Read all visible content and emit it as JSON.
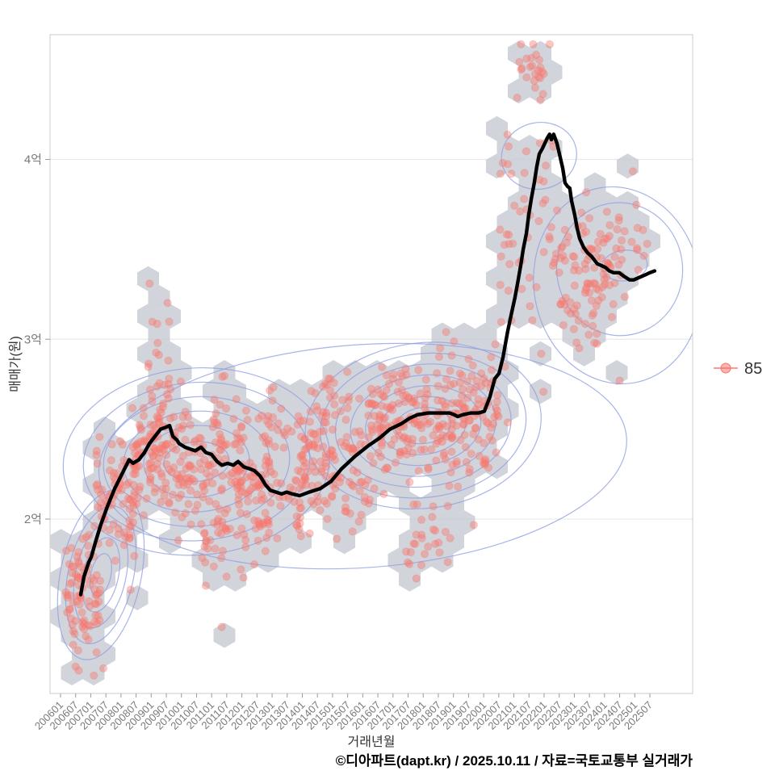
{
  "chart_data": {
    "type": "scatter",
    "overlays": [
      "hexbin",
      "density_contour",
      "trend_line"
    ],
    "title": "",
    "xlabel": "거래년월",
    "ylabel": "매매가(원)",
    "x_index_unit": "months since 2006-01",
    "x_tick_labels": [
      "200601",
      "200607",
      "200701",
      "200707",
      "200801",
      "200807",
      "200901",
      "200907",
      "201001",
      "201007",
      "201101",
      "201107",
      "201201",
      "201207",
      "201301",
      "201307",
      "201401",
      "201407",
      "201501",
      "201507",
      "201601",
      "201607",
      "201701",
      "201707",
      "201801",
      "201807",
      "201901",
      "201907",
      "202001",
      "202007",
      "202101",
      "202107",
      "202201",
      "202207",
      "202301",
      "202307",
      "202401",
      "202407",
      "202501",
      "202507"
    ],
    "y_ticks": [
      {
        "label": "2억",
        "value": 2
      },
      {
        "label": "3억",
        "value": 3
      },
      {
        "label": "4억",
        "value": 4
      }
    ],
    "ylim": [
      1.1,
      4.7
    ],
    "legend": {
      "label": "85"
    },
    "colors": {
      "point": "#F8766D",
      "hex_fill": "#C7CBD2",
      "contour": "#92A0E2",
      "trend": "#000000",
      "grid": "#E9E9E9",
      "axis_text": "#7A7A7A",
      "panel_border": "#D4D4D4",
      "tick_mark": "#9A9A9A"
    },
    "trend_line": [
      [
        8.0,
        1.58
      ],
      [
        9.3,
        1.68
      ],
      [
        11.2,
        1.76
      ],
      [
        12.2,
        1.79
      ],
      [
        13.8,
        1.87
      ],
      [
        16.0,
        1.97
      ],
      [
        18.6,
        2.07
      ],
      [
        21.5,
        2.17
      ],
      [
        24.7,
        2.26
      ],
      [
        27.2,
        2.33
      ],
      [
        28.8,
        2.31
      ],
      [
        31.1,
        2.33
      ],
      [
        33.3,
        2.37
      ],
      [
        35.3,
        2.42
      ],
      [
        37.5,
        2.46
      ],
      [
        39.7,
        2.5
      ],
      [
        41.7,
        2.51
      ],
      [
        43.3,
        2.52
      ],
      [
        44.6,
        2.46
      ],
      [
        46.2,
        2.44
      ],
      [
        47.1,
        2.42
      ],
      [
        49.4,
        2.4
      ],
      [
        51.3,
        2.39
      ],
      [
        53.5,
        2.38
      ],
      [
        55.8,
        2.4
      ],
      [
        57.7,
        2.37
      ],
      [
        59.9,
        2.36
      ],
      [
        62.2,
        2.32
      ],
      [
        64.1,
        2.3
      ],
      [
        66.4,
        2.31
      ],
      [
        68.6,
        2.3
      ],
      [
        70.5,
        2.32
      ],
      [
        72.8,
        2.29
      ],
      [
        75.0,
        2.28
      ],
      [
        76.9,
        2.27
      ],
      [
        79.2,
        2.24
      ],
      [
        81.4,
        2.19
      ],
      [
        83.3,
        2.16
      ],
      [
        85.6,
        2.15
      ],
      [
        87.8,
        2.14
      ],
      [
        89.8,
        2.15
      ],
      [
        92.0,
        2.14
      ],
      [
        94.9,
        2.13
      ],
      [
        98.7,
        2.15
      ],
      [
        103.2,
        2.17
      ],
      [
        107.4,
        2.21
      ],
      [
        111.6,
        2.28
      ],
      [
        117.0,
        2.35
      ],
      [
        122.4,
        2.41
      ],
      [
        126.6,
        2.45
      ],
      [
        130.8,
        2.5
      ],
      [
        135.3,
        2.53
      ],
      [
        138.5,
        2.56
      ],
      [
        141.7,
        2.58
      ],
      [
        145.9,
        2.59
      ],
      [
        150.0,
        2.59
      ],
      [
        154.5,
        2.59
      ],
      [
        156.4,
        2.58
      ],
      [
        157.7,
        2.57
      ],
      [
        159.6,
        2.58
      ],
      [
        162.8,
        2.59
      ],
      [
        166.0,
        2.59
      ],
      [
        168.3,
        2.6
      ],
      [
        170.5,
        2.68
      ],
      [
        172.4,
        2.78
      ],
      [
        174.1,
        2.81
      ],
      [
        175.7,
        2.9
      ],
      [
        177.5,
        3.04
      ],
      [
        179.0,
        3.14
      ],
      [
        180.4,
        3.23
      ],
      [
        181.6,
        3.32
      ],
      [
        182.7,
        3.41
      ],
      [
        183.7,
        3.5
      ],
      [
        185.0,
        3.59
      ],
      [
        185.9,
        3.69
      ],
      [
        186.9,
        3.78
      ],
      [
        188.1,
        3.87
      ],
      [
        189.1,
        3.96
      ],
      [
        190.1,
        4.03
      ],
      [
        191.3,
        4.06
      ],
      [
        192.3,
        4.09
      ],
      [
        193.3,
        4.12
      ],
      [
        194.2,
        4.14
      ],
      [
        194.9,
        4.11
      ],
      [
        195.8,
        4.14
      ],
      [
        197.1,
        4.09
      ],
      [
        198.1,
        4.03
      ],
      [
        199.4,
        3.95
      ],
      [
        200.3,
        3.87
      ],
      [
        201.3,
        3.85
      ],
      [
        202.2,
        3.84
      ],
      [
        202.9,
        3.77
      ],
      [
        204.2,
        3.69
      ],
      [
        205.1,
        3.62
      ],
      [
        206.1,
        3.56
      ],
      [
        207.7,
        3.51
      ],
      [
        209.3,
        3.48
      ],
      [
        210.9,
        3.46
      ],
      [
        213.1,
        3.42
      ],
      [
        214.7,
        3.41
      ],
      [
        216.3,
        3.4
      ],
      [
        217.9,
        3.38
      ],
      [
        219.6,
        3.37
      ],
      [
        221.8,
        3.37
      ],
      [
        223.7,
        3.35
      ],
      [
        226.0,
        3.33
      ],
      [
        227.6,
        3.33
      ],
      [
        229.2,
        3.34
      ],
      [
        230.8,
        3.35
      ],
      [
        232.4,
        3.36
      ],
      [
        234.0,
        3.37
      ],
      [
        235.9,
        3.38
      ]
    ],
    "scatter_clusters": [
      {
        "m_range": [
          2,
          16
        ],
        "v_mean": 1.6,
        "v_sd": 0.2,
        "n": 85
      },
      {
        "m_range": [
          14,
          30
        ],
        "v_mean": 2.1,
        "v_sd": 0.17,
        "n": 75
      },
      {
        "m_range": [
          28,
          46
        ],
        "v_mean": 2.34,
        "v_sd": 0.17,
        "n": 100
      },
      {
        "m_range": [
          33,
          44
        ],
        "v_mean": 2.8,
        "v_sd": 0.22,
        "n": 30
      },
      {
        "m_range": [
          46,
          72
        ],
        "v_mean": 2.27,
        "v_sd": 0.17,
        "n": 115
      },
      {
        "m_range": [
          70,
          96
        ],
        "v_mean": 2.15,
        "v_sd": 0.16,
        "n": 105
      },
      {
        "m_range": [
          56,
          68
        ],
        "v_mean": 1.87,
        "v_sd": 0.1,
        "n": 22
      },
      {
        "m_range": [
          60,
          92
        ],
        "v_mean": 2.55,
        "v_sd": 0.14,
        "n": 35
      },
      {
        "m_range": [
          94,
          124
        ],
        "v_mean": 2.3,
        "v_sd": 0.18,
        "n": 120
      },
      {
        "m_range": [
          96,
          122
        ],
        "v_mean": 2.62,
        "v_sd": 0.12,
        "n": 25
      },
      {
        "m_range": [
          122,
          150
        ],
        "v_mean": 2.54,
        "v_sd": 0.16,
        "n": 140
      },
      {
        "m_range": [
          136,
          155
        ],
        "v_mean": 1.88,
        "v_sd": 0.1,
        "n": 25
      },
      {
        "m_range": [
          150,
          174
        ],
        "v_mean": 2.58,
        "v_sd": 0.19,
        "n": 130
      },
      {
        "m_range": [
          174,
          196
        ],
        "v_mean": 3.75,
        "v_sd": 0.45,
        "n": 55
      },
      {
        "m_range": [
          181,
          192
        ],
        "v_mean": 4.45,
        "v_sd": 0.1,
        "n": 22
      },
      {
        "m_range": [
          196,
          233
        ],
        "v_mean": 3.42,
        "v_sd": 0.17,
        "n": 100
      },
      {
        "m_range": [
          199,
          214
        ],
        "v_mean": 3.12,
        "v_sd": 0.08,
        "n": 20
      }
    ],
    "scatter_singles": [
      [
        64,
        1.4
      ],
      [
        222,
        2.77
      ],
      [
        206,
        2.95
      ],
      [
        5,
        1.3
      ],
      [
        7,
        1.27
      ],
      [
        6,
        1.18
      ],
      [
        17,
        1.17
      ]
    ],
    "density_contours": [
      {
        "m": 16,
        "v": 1.69,
        "rm": 4,
        "rv": 0.12,
        "rot": 12
      },
      {
        "m": 16,
        "v": 1.69,
        "rm": 7,
        "rv": 0.21,
        "rot": 12
      },
      {
        "m": 16,
        "v": 1.69,
        "rm": 10,
        "rv": 0.3,
        "rot": 12
      },
      {
        "m": 16,
        "v": 1.69,
        "rm": 13,
        "rv": 0.39,
        "rot": 12
      },
      {
        "m": 16,
        "v": 1.69,
        "rm": 16,
        "rv": 0.48,
        "rot": 12
      },
      {
        "m": 54,
        "v": 2.32,
        "rm": 13,
        "rv": 0.11,
        "rot": -4
      },
      {
        "m": 54,
        "v": 2.32,
        "rm": 21,
        "rv": 0.2,
        "rot": -4
      },
      {
        "m": 54,
        "v": 2.32,
        "rm": 29,
        "rv": 0.28,
        "rot": -4
      },
      {
        "m": 54,
        "v": 2.32,
        "rm": 37,
        "rv": 0.36,
        "rot": -4
      },
      {
        "m": 54,
        "v": 2.32,
        "rm": 45,
        "rv": 0.44,
        "rot": -4
      },
      {
        "m": 54,
        "v": 2.32,
        "rm": 53,
        "rv": 0.52,
        "rot": -4
      },
      {
        "m": 144,
        "v": 2.52,
        "rm": 11,
        "rv": 0.1,
        "rot": -7
      },
      {
        "m": 144,
        "v": 2.52,
        "rm": 17,
        "rv": 0.16,
        "rot": -7
      },
      {
        "m": 144,
        "v": 2.52,
        "rm": 23,
        "rv": 0.22,
        "rot": -7
      },
      {
        "m": 144,
        "v": 2.52,
        "rm": 29,
        "rv": 0.28,
        "rot": -7
      },
      {
        "m": 144,
        "v": 2.52,
        "rm": 35,
        "rv": 0.34,
        "rot": -7
      },
      {
        "m": 144,
        "v": 2.52,
        "rm": 41,
        "rv": 0.4,
        "rot": -7
      },
      {
        "m": 144,
        "v": 2.52,
        "rm": 47,
        "rv": 0.46,
        "rot": -7
      },
      {
        "m": 190,
        "v": 4.02,
        "rm": 15,
        "rv": 0.185,
        "rot": -12
      },
      {
        "m": 224,
        "v": 3.41,
        "rm": 9,
        "rv": 0.085,
        "rot": -6
      },
      {
        "m": 222,
        "v": 3.39,
        "rm": 25,
        "rv": 0.37,
        "rot": -6
      },
      {
        "m": 221,
        "v": 3.3,
        "rm": 33,
        "rv": 0.55,
        "rot": -10
      },
      {
        "m": 120,
        "v": 2.35,
        "rm": 105,
        "rv": 0.62,
        "rot": -4
      }
    ]
  },
  "footer": {
    "attribution": "©디아파트(dapt.kr) / 2025.10.11 / 자료=국토교통부 실거래가"
  }
}
